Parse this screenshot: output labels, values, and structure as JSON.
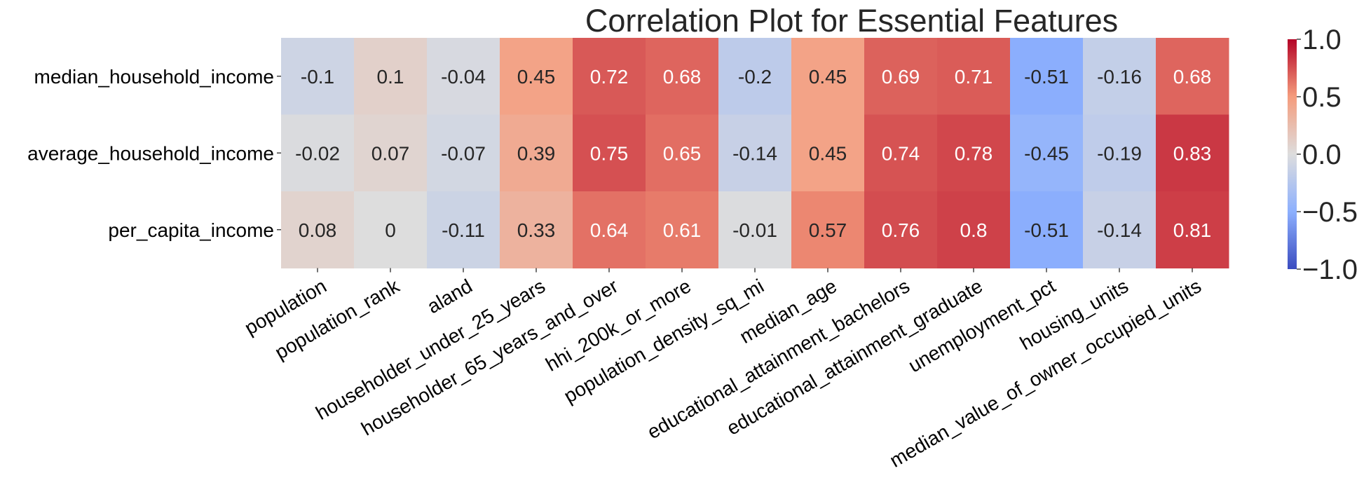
{
  "chart_data": {
    "type": "heatmap",
    "title": "Correlation Plot for Essential Features",
    "rows": [
      "median_household_income",
      "average_household_income",
      "per_capita_income"
    ],
    "columns": [
      "population",
      "population_rank",
      "aland",
      "householder_under_25_years",
      "householder_65_years_and_over",
      "hhi_200k_or_more",
      "population_density_sq_mi",
      "median_age",
      "educational_attainment_bachelors",
      "educational_attainment_graduate",
      "unemployment_pct",
      "housing_units",
      "median_value_of_owner_occupied_units"
    ],
    "values": [
      [
        -0.1,
        0.1,
        -0.04,
        0.45,
        0.72,
        0.68,
        -0.2,
        0.45,
        0.69,
        0.71,
        -0.51,
        -0.16,
        0.68
      ],
      [
        -0.02,
        0.07,
        -0.07,
        0.39,
        0.75,
        0.65,
        -0.14,
        0.45,
        0.74,
        0.78,
        -0.45,
        -0.19,
        0.83
      ],
      [
        0.08,
        0,
        -0.11,
        0.33,
        0.64,
        0.61,
        -0.01,
        0.57,
        0.76,
        0.8,
        -0.51,
        -0.14,
        0.81
      ]
    ],
    "colormap": "coolwarm",
    "vmin": -1.0,
    "vmax": 1.0,
    "colorbar_ticks": [
      "1.0",
      "0.5",
      "0.0",
      "−0.5",
      "−1.0"
    ],
    "colorbar_values": [
      1.0,
      0.5,
      0.0,
      -0.5,
      -1.0
    ],
    "annotated": true
  }
}
